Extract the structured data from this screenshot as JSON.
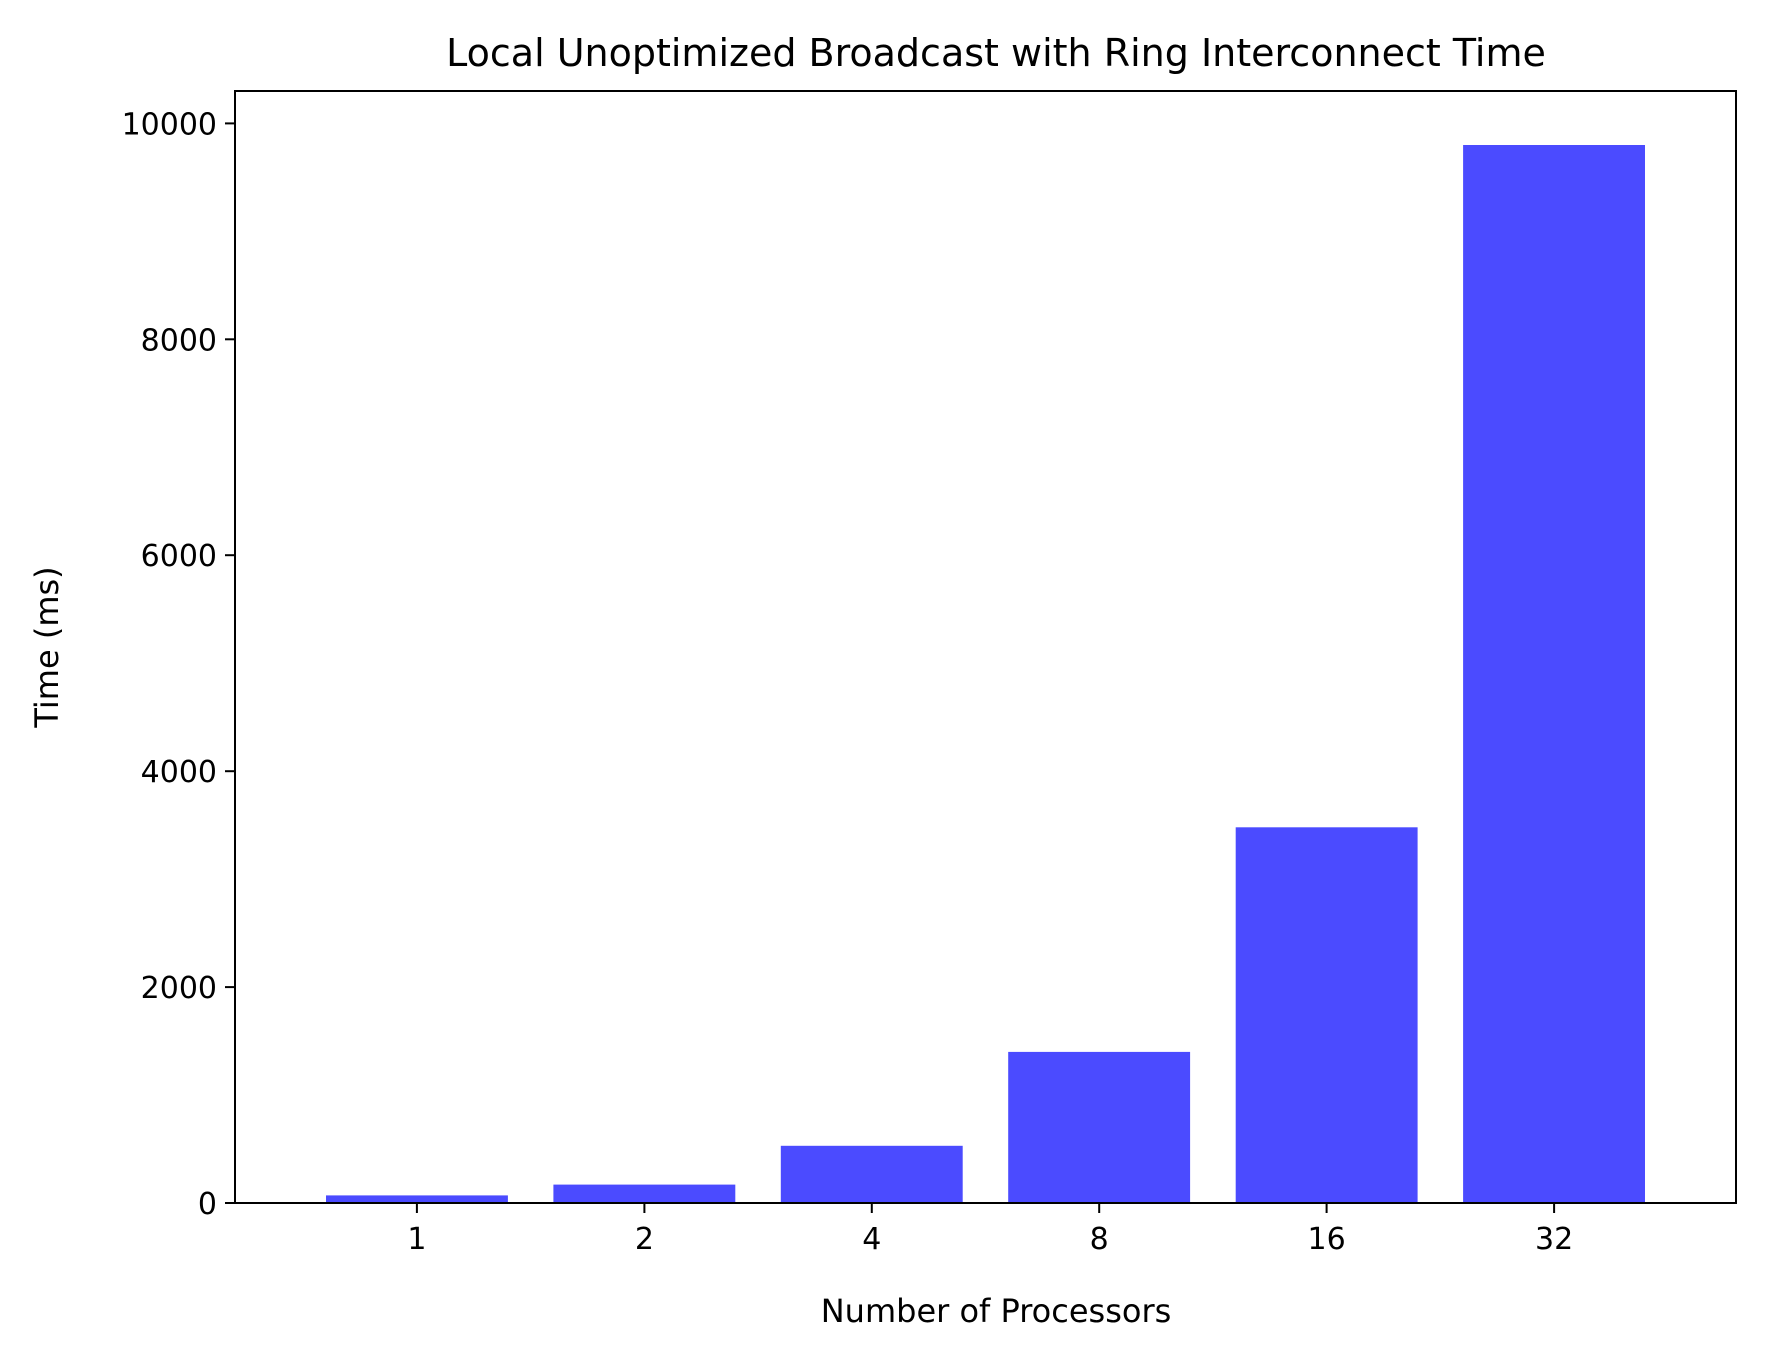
{
  "chart_data": {
    "type": "bar",
    "title": "Local Unoptimized Broadcast with Ring Interconnect Time",
    "xlabel": "Number of Processors",
    "ylabel": "Time (ms)",
    "categories": [
      "1",
      "2",
      "4",
      "8",
      "16",
      "32"
    ],
    "values": [
      70,
      170,
      530,
      1400,
      3480,
      9800
    ],
    "yticks": [
      0,
      2000,
      4000,
      6000,
      8000,
      10000
    ],
    "ylim": [
      0,
      10300
    ],
    "bar_color": "#4b4bff",
    "grid": false,
    "legend": false
  }
}
